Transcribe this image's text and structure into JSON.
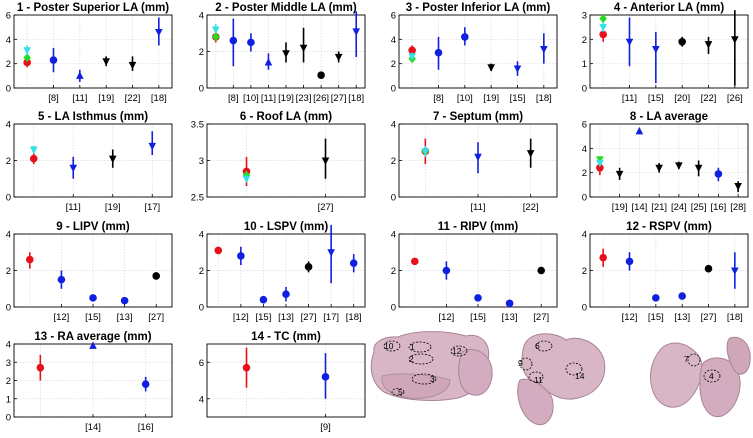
{
  "figure": {
    "colors": {
      "red": "#e8101a",
      "green": "#22dd22",
      "cyan": "#33e0ea",
      "blue": "#1020e0",
      "black": "#000000",
      "grid": "#d9d9d9",
      "anatomy": "#d9b6c6",
      "anatomy_edge": "#a88595"
    },
    "anatomy_labels": [
      "10",
      "1",
      "2",
      "3",
      "5",
      "12",
      "6",
      "9",
      "11",
      "14",
      "7",
      "4"
    ]
  },
  "chart_data": [
    {
      "type": "errorbar",
      "title": "1 - Poster Superior LA (mm)",
      "ylim": [
        0,
        6
      ],
      "yticks": [
        0,
        2,
        4,
        6
      ],
      "grid": true,
      "xticks": [
        "[8]",
        "[11]",
        "[19]",
        "[22]",
        "[18]"
      ],
      "points": [
        {
          "x": 0,
          "y": 2.1,
          "lo": 1.7,
          "hi": 2.5,
          "color": "red",
          "marker": "circle"
        },
        {
          "x": 0,
          "y": 2.5,
          "lo": 2.5,
          "hi": 2.5,
          "color": "green",
          "marker": "diamond"
        },
        {
          "x": 0,
          "y": 3.1,
          "lo": 2.7,
          "hi": 3.5,
          "color": "cyan",
          "marker": "tri-down"
        },
        {
          "x": 1,
          "y": 2.3,
          "lo": 1.3,
          "hi": 3.3,
          "color": "blue",
          "marker": "circle"
        },
        {
          "x": 2,
          "y": 1.0,
          "lo": 0.5,
          "hi": 1.5,
          "color": "blue",
          "marker": "tri-up"
        },
        {
          "x": 3,
          "y": 2.2,
          "lo": 1.8,
          "hi": 2.6,
          "color": "black",
          "marker": "tri-down"
        },
        {
          "x": 4,
          "y": 1.9,
          "lo": 1.4,
          "hi": 2.6,
          "color": "black",
          "marker": "tri-down"
        },
        {
          "x": 5,
          "y": 4.6,
          "lo": 3.5,
          "hi": 5.8,
          "color": "blue",
          "marker": "tri-down"
        }
      ]
    },
    {
      "type": "errorbar",
      "title": "2 - Poster Middle LA (mm)",
      "ylim": [
        0,
        4
      ],
      "yticks": [
        0,
        2,
        4
      ],
      "grid": true,
      "xticks": [
        "[8]",
        "[10]",
        "[11]",
        "[19]",
        "[23]",
        "[26]",
        "[27]",
        "[18]"
      ],
      "points": [
        {
          "x": 0,
          "y": 2.8,
          "lo": 2.5,
          "hi": 3.1,
          "color": "red",
          "marker": "circle"
        },
        {
          "x": 0,
          "y": 2.8,
          "lo": 2.8,
          "hi": 2.8,
          "color": "green",
          "marker": "diamond"
        },
        {
          "x": 0,
          "y": 3.2,
          "lo": 3.0,
          "hi": 3.5,
          "color": "cyan",
          "marker": "tri-down"
        },
        {
          "x": 1,
          "y": 2.6,
          "lo": 1.2,
          "hi": 3.8,
          "color": "blue",
          "marker": "circle"
        },
        {
          "x": 2,
          "y": 2.5,
          "lo": 2.0,
          "hi": 3.0,
          "color": "blue",
          "marker": "circle"
        },
        {
          "x": 3,
          "y": 1.4,
          "lo": 1.0,
          "hi": 1.9,
          "color": "blue",
          "marker": "tri-up"
        },
        {
          "x": 4,
          "y": 1.9,
          "lo": 1.4,
          "hi": 2.5,
          "color": "black",
          "marker": "tri-down"
        },
        {
          "x": 5,
          "y": 2.2,
          "lo": 1.4,
          "hi": 3.3,
          "color": "black",
          "marker": "tri-down"
        },
        {
          "x": 6,
          "y": 0.7,
          "lo": 0.6,
          "hi": 0.8,
          "color": "black",
          "marker": "circle"
        },
        {
          "x": 7,
          "y": 1.7,
          "lo": 1.4,
          "hi": 2.0,
          "color": "black",
          "marker": "tri-down"
        },
        {
          "x": 8,
          "y": 3.1,
          "lo": 1.7,
          "hi": 4.2,
          "color": "blue",
          "marker": "tri-down"
        }
      ]
    },
    {
      "type": "errorbar",
      "title": "3 - Poster Inferior LA (mm)",
      "ylim": [
        0,
        6
      ],
      "yticks": [
        0,
        2,
        4,
        6
      ],
      "grid": true,
      "xticks": [
        "[8]",
        "[10]",
        "[19]",
        "[15]",
        "[18]"
      ],
      "points": [
        {
          "x": 0,
          "y": 3.1,
          "lo": 2.6,
          "hi": 3.5,
          "color": "red",
          "marker": "circle"
        },
        {
          "x": 0,
          "y": 2.4,
          "lo": 2.4,
          "hi": 2.4,
          "color": "green",
          "marker": "diamond"
        },
        {
          "x": 0,
          "y": 2.6,
          "lo": 2.3,
          "hi": 2.9,
          "color": "cyan",
          "marker": "tri-down"
        },
        {
          "x": 1,
          "y": 2.9,
          "lo": 1.5,
          "hi": 4.2,
          "color": "blue",
          "marker": "circle"
        },
        {
          "x": 2,
          "y": 4.2,
          "lo": 3.5,
          "hi": 5.0,
          "color": "blue",
          "marker": "circle"
        },
        {
          "x": 3,
          "y": 1.7,
          "lo": 1.4,
          "hi": 2.0,
          "color": "black",
          "marker": "tri-down"
        },
        {
          "x": 4,
          "y": 1.6,
          "lo": 1.0,
          "hi": 2.2,
          "color": "blue",
          "marker": "tri-down"
        },
        {
          "x": 5,
          "y": 3.2,
          "lo": 2.0,
          "hi": 4.5,
          "color": "blue",
          "marker": "tri-down"
        }
      ]
    },
    {
      "type": "errorbar",
      "title": "4 - Anterior LA (mm)",
      "ylim": [
        0,
        3
      ],
      "yticks": [
        0,
        1,
        2,
        3
      ],
      "grid": true,
      "xticks": [
        "[11]",
        "[15]",
        "[20]",
        "[22]",
        "[26]"
      ],
      "points": [
        {
          "x": 0,
          "y": 2.2,
          "lo": 1.9,
          "hi": 2.5,
          "color": "red",
          "marker": "circle"
        },
        {
          "x": 0,
          "y": 2.85,
          "lo": 2.85,
          "hi": 2.85,
          "color": "green",
          "marker": "diamond"
        },
        {
          "x": 0,
          "y": 2.5,
          "lo": 2.3,
          "hi": 2.7,
          "color": "cyan",
          "marker": "tri-down"
        },
        {
          "x": 1,
          "y": 1.9,
          "lo": 0.9,
          "hi": 2.9,
          "color": "blue",
          "marker": "tri-down"
        },
        {
          "x": 2,
          "y": 1.6,
          "lo": 0.2,
          "hi": 2.3,
          "color": "blue",
          "marker": "tri-down"
        },
        {
          "x": 3,
          "y": 1.9,
          "lo": 1.7,
          "hi": 2.1,
          "color": "black",
          "marker": "circle"
        },
        {
          "x": 4,
          "y": 1.8,
          "lo": 1.4,
          "hi": 2.1,
          "color": "black",
          "marker": "tri-down"
        },
        {
          "x": 5,
          "y": 2.0,
          "lo": 0.1,
          "hi": 3.2,
          "color": "black",
          "marker": "tri-down"
        }
      ]
    },
    {
      "type": "errorbar",
      "title": "5 - LA Isthmus (mm)",
      "ylim": [
        0,
        4
      ],
      "yticks": [
        0,
        2,
        4
      ],
      "grid": true,
      "xticks": [
        "[11]",
        "[19]",
        "[17]"
      ],
      "points": [
        {
          "x": 0,
          "y": 2.1,
          "lo": 1.8,
          "hi": 2.4,
          "color": "red",
          "marker": "circle"
        },
        {
          "x": 0,
          "y": 2.6,
          "lo": 2.4,
          "hi": 2.8,
          "color": "green",
          "marker": "tri-down"
        },
        {
          "x": 0,
          "y": 2.6,
          "lo": 2.4,
          "hi": 2.8,
          "color": "cyan",
          "marker": "tri-down"
        },
        {
          "x": 1,
          "y": 1.6,
          "lo": 1.0,
          "hi": 2.2,
          "color": "blue",
          "marker": "tri-down"
        },
        {
          "x": 2,
          "y": 2.1,
          "lo": 1.6,
          "hi": 2.6,
          "color": "black",
          "marker": "tri-down"
        },
        {
          "x": 3,
          "y": 2.8,
          "lo": 2.3,
          "hi": 3.6,
          "color": "blue",
          "marker": "tri-down"
        }
      ]
    },
    {
      "type": "errorbar",
      "title": "6 - Roof LA (mm)",
      "ylim": [
        2.5,
        3.5
      ],
      "yticks": [
        2.5,
        3,
        3.5
      ],
      "grid": true,
      "xticks": [
        "[27]"
      ],
      "points": [
        {
          "x": 0,
          "y": 2.85,
          "lo": 2.65,
          "hi": 3.05,
          "color": "red",
          "marker": "circle"
        },
        {
          "x": 0,
          "y": 2.8,
          "lo": 2.8,
          "hi": 2.8,
          "color": "green",
          "marker": "diamond"
        },
        {
          "x": 0,
          "y": 2.75,
          "lo": 2.7,
          "hi": 2.8,
          "color": "cyan",
          "marker": "tri-down"
        },
        {
          "x": 1,
          "y": 3.0,
          "lo": 2.75,
          "hi": 3.3,
          "color": "black",
          "marker": "tri-down"
        }
      ]
    },
    {
      "type": "errorbar",
      "title": "7 - Septum (mm)",
      "ylim": [
        0,
        4
      ],
      "yticks": [
        0,
        2,
        4
      ],
      "grid": true,
      "xticks": [
        "[11]",
        "[22]"
      ],
      "points": [
        {
          "x": 0,
          "y": 2.5,
          "lo": 1.8,
          "hi": 3.2,
          "color": "red",
          "marker": "circle"
        },
        {
          "x": 0,
          "y": 2.5,
          "lo": 2.5,
          "hi": 2.5,
          "color": "green",
          "marker": "diamond"
        },
        {
          "x": 0,
          "y": 2.5,
          "lo": 2.2,
          "hi": 2.8,
          "color": "cyan",
          "marker": "tri-down"
        },
        {
          "x": 1,
          "y": 2.2,
          "lo": 1.3,
          "hi": 3.0,
          "color": "blue",
          "marker": "tri-down"
        },
        {
          "x": 2,
          "y": 2.4,
          "lo": 1.6,
          "hi": 3.2,
          "color": "black",
          "marker": "tri-down"
        }
      ]
    },
    {
      "type": "errorbar",
      "title": "8 - LA average",
      "ylim": [
        0,
        6
      ],
      "yticks": [
        0,
        2,
        4,
        6
      ],
      "grid": true,
      "xticks": [
        "[19]",
        "[14]",
        "[21]",
        "[24]",
        "[25]",
        "[16]",
        "[28]"
      ],
      "points": [
        {
          "x": 0,
          "y": 2.4,
          "lo": 1.8,
          "hi": 3.0,
          "color": "red",
          "marker": "circle"
        },
        {
          "x": 0,
          "y": 3.1,
          "lo": 2.9,
          "hi": 3.3,
          "color": "green",
          "marker": "tri-down"
        },
        {
          "x": 0,
          "y": 2.8,
          "lo": 2.6,
          "hi": 3.0,
          "color": "cyan",
          "marker": "tri-down"
        },
        {
          "x": 1,
          "y": 1.9,
          "lo": 1.4,
          "hi": 2.4,
          "color": "black",
          "marker": "tri-down"
        },
        {
          "x": 2,
          "y": 5.4,
          "lo": 5.2,
          "hi": 5.6,
          "color": "blue",
          "marker": "tri-up"
        },
        {
          "x": 3,
          "y": 2.4,
          "lo": 2.0,
          "hi": 2.8,
          "color": "black",
          "marker": "tri-down"
        },
        {
          "x": 4,
          "y": 2.6,
          "lo": 2.3,
          "hi": 2.9,
          "color": "black",
          "marker": "tri-down"
        },
        {
          "x": 5,
          "y": 2.4,
          "lo": 1.7,
          "hi": 3.0,
          "color": "black",
          "marker": "tri-down"
        },
        {
          "x": 6,
          "y": 1.9,
          "lo": 1.3,
          "hi": 2.4,
          "color": "blue",
          "marker": "circle"
        },
        {
          "x": 7,
          "y": 0.9,
          "lo": 0.4,
          "hi": 1.3,
          "color": "black",
          "marker": "tri-down"
        }
      ]
    },
    {
      "type": "errorbar",
      "title": "9 - LIPV (mm)",
      "ylim": [
        0,
        4
      ],
      "yticks": [
        0,
        2,
        4
      ],
      "grid": true,
      "xticks": [
        "[12]",
        "[15]",
        "[13]",
        "[27]"
      ],
      "points": [
        {
          "x": 0,
          "y": 2.6,
          "lo": 2.1,
          "hi": 3.0,
          "color": "red",
          "marker": "circle"
        },
        {
          "x": 1,
          "y": 1.5,
          "lo": 1.0,
          "hi": 2.0,
          "color": "blue",
          "marker": "circle"
        },
        {
          "x": 2,
          "y": 0.5,
          "lo": 0.4,
          "hi": 0.6,
          "color": "blue",
          "marker": "circle"
        },
        {
          "x": 3,
          "y": 0.35,
          "lo": 0.2,
          "hi": 0.5,
          "color": "blue",
          "marker": "circle"
        },
        {
          "x": 4,
          "y": 1.7,
          "lo": 1.5,
          "hi": 1.9,
          "color": "black",
          "marker": "circle"
        }
      ]
    },
    {
      "type": "errorbar",
      "title": "10 - LSPV (mm)",
      "ylim": [
        0,
        4
      ],
      "yticks": [
        0,
        2,
        4
      ],
      "grid": true,
      "xticks": [
        "[12]",
        "[15]",
        "[13]",
        "[27]",
        "[17]",
        "[18]"
      ],
      "points": [
        {
          "x": 0,
          "y": 3.1,
          "lo": 3.0,
          "hi": 3.2,
          "color": "red",
          "marker": "circle"
        },
        {
          "x": 1,
          "y": 2.8,
          "lo": 2.3,
          "hi": 3.3,
          "color": "blue",
          "marker": "circle"
        },
        {
          "x": 2,
          "y": 0.4,
          "lo": 0.3,
          "hi": 0.5,
          "color": "blue",
          "marker": "circle"
        },
        {
          "x": 3,
          "y": 0.7,
          "lo": 0.3,
          "hi": 1.1,
          "color": "blue",
          "marker": "circle"
        },
        {
          "x": 4,
          "y": 2.2,
          "lo": 1.9,
          "hi": 2.5,
          "color": "black",
          "marker": "circle"
        },
        {
          "x": 5,
          "y": 3.0,
          "lo": 1.3,
          "hi": 4.5,
          "color": "blue",
          "marker": "tri-down"
        },
        {
          "x": 6,
          "y": 2.4,
          "lo": 1.9,
          "hi": 2.9,
          "color": "blue",
          "marker": "circle"
        }
      ]
    },
    {
      "type": "errorbar",
      "title": "11 - RIPV (mm)",
      "ylim": [
        0,
        4
      ],
      "yticks": [
        0,
        2,
        4
      ],
      "grid": true,
      "xticks": [
        "[12]",
        "[15]",
        "[13]",
        "[27]"
      ],
      "points": [
        {
          "x": 0,
          "y": 2.5,
          "lo": 2.4,
          "hi": 2.6,
          "color": "red",
          "marker": "circle"
        },
        {
          "x": 1,
          "y": 2.0,
          "lo": 1.5,
          "hi": 2.5,
          "color": "blue",
          "marker": "circle"
        },
        {
          "x": 2,
          "y": 0.5,
          "lo": 0.4,
          "hi": 0.6,
          "color": "blue",
          "marker": "circle"
        },
        {
          "x": 3,
          "y": 0.2,
          "lo": 0.1,
          "hi": 0.3,
          "color": "blue",
          "marker": "circle"
        },
        {
          "x": 4,
          "y": 2.0,
          "lo": 1.8,
          "hi": 2.2,
          "color": "black",
          "marker": "circle"
        }
      ]
    },
    {
      "type": "errorbar",
      "title": "12 - RSPV (mm)",
      "ylim": [
        0,
        4
      ],
      "yticks": [
        0,
        2,
        4
      ],
      "grid": true,
      "xticks": [
        "[12]",
        "[15]",
        "[13]",
        "[27]",
        "[18]"
      ],
      "points": [
        {
          "x": 0,
          "y": 2.7,
          "lo": 2.2,
          "hi": 3.2,
          "color": "red",
          "marker": "circle"
        },
        {
          "x": 1,
          "y": 2.5,
          "lo": 2.0,
          "hi": 3.0,
          "color": "blue",
          "marker": "circle"
        },
        {
          "x": 2,
          "y": 0.5,
          "lo": 0.4,
          "hi": 0.6,
          "color": "blue",
          "marker": "circle"
        },
        {
          "x": 3,
          "y": 0.6,
          "lo": 0.5,
          "hi": 0.7,
          "color": "blue",
          "marker": "circle"
        },
        {
          "x": 4,
          "y": 2.1,
          "lo": 1.9,
          "hi": 2.3,
          "color": "black",
          "marker": "circle"
        },
        {
          "x": 5,
          "y": 2.0,
          "lo": 1.0,
          "hi": 3.0,
          "color": "blue",
          "marker": "tri-down"
        }
      ]
    },
    {
      "type": "errorbar",
      "title": "13 - RA average (mm)",
      "ylim": [
        0,
        4
      ],
      "yticks": [
        0,
        1,
        2,
        3,
        4
      ],
      "grid": true,
      "xticks": [
        "[14]",
        "[16]"
      ],
      "points": [
        {
          "x": 0,
          "y": 2.7,
          "lo": 2.0,
          "hi": 3.4,
          "color": "red",
          "marker": "circle"
        },
        {
          "x": 1,
          "y": 3.9,
          "lo": 3.8,
          "hi": 4.0,
          "color": "blue",
          "marker": "tri-up"
        },
        {
          "x": 2,
          "y": 1.8,
          "lo": 1.4,
          "hi": 2.2,
          "color": "blue",
          "marker": "circle"
        }
      ]
    },
    {
      "type": "errorbar",
      "title": "14 - TC (mm)",
      "ylim": [
        3,
        7
      ],
      "yticks": [
        4,
        6
      ],
      "grid": true,
      "xticks": [
        "[9]"
      ],
      "points": [
        {
          "x": 0,
          "y": 5.7,
          "lo": 4.6,
          "hi": 6.8,
          "color": "red",
          "marker": "circle"
        },
        {
          "x": 1,
          "y": 5.2,
          "lo": 4.0,
          "hi": 6.5,
          "color": "blue",
          "marker": "circle"
        }
      ]
    }
  ]
}
